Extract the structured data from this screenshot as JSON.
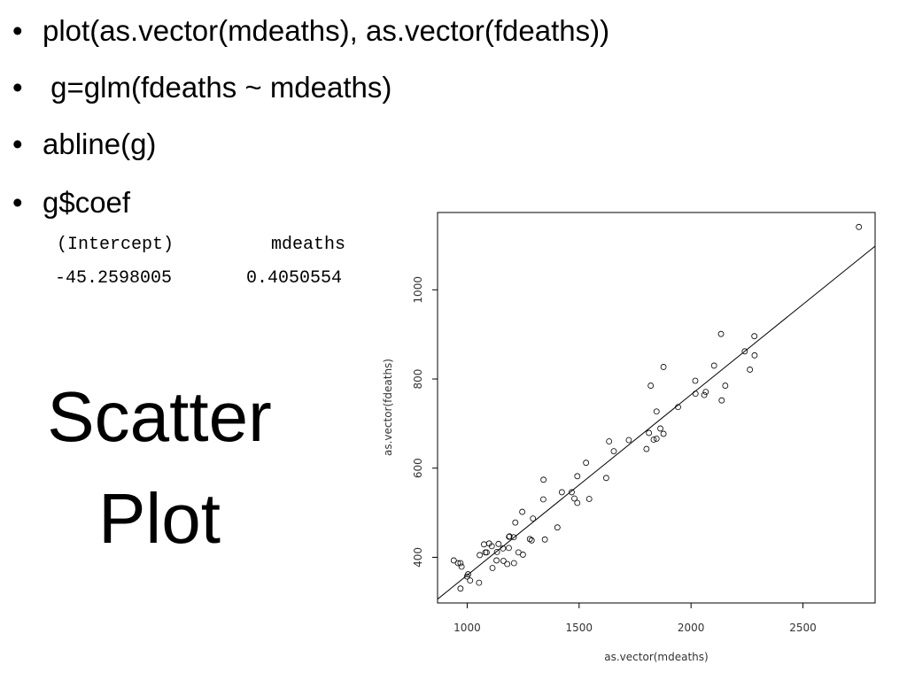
{
  "bullets": [
    "plot(as.vector(mdeaths), as.vector(fdeaths))",
    " g=glm(fdeaths ~ mdeaths)",
    "abline(g)",
    "g$coef"
  ],
  "coef": {
    "headers": [
      "(Intercept)",
      "mdeaths"
    ],
    "values": [
      -45.2598005,
      0.4050554
    ]
  },
  "slide_title": [
    "Scatter",
    "Plot"
  ],
  "chart_data": {
    "type": "scatter",
    "xlabel": "as.vector(mdeaths)",
    "ylabel": "as.vector(fdeaths)",
    "x": [
      2134,
      1863,
      1877,
      1877,
      1492,
      1249,
      1280,
      1131,
      1209,
      1492,
      1621,
      1846,
      2103,
      2137,
      2153,
      1833,
      1403,
      1288,
      1186,
      1133,
      1053,
      1347,
      1545,
      2066,
      2020,
      2750,
      2283,
      1479,
      1189,
      1160,
      1113,
      970,
      999,
      1208,
      1467,
      2059,
      2240,
      1634,
      1722,
      1801,
      1246,
      1162,
      1087,
      1013,
      959,
      1179,
      1229,
      1655,
      2019,
      2284,
      1942,
      1423,
      1340,
      1187,
      1098,
      1004,
      970,
      1140,
      1110,
      1812,
      2263,
      1820,
      1846,
      1531,
      1215,
      1075,
      1056,
      975,
      940,
      1081,
      1294,
      1341
    ],
    "values": [
      901,
      689,
      827,
      677,
      522,
      406,
      441,
      393,
      387,
      582,
      578,
      666,
      830,
      752,
      785,
      664,
      467,
      438,
      421,
      412,
      343,
      440,
      531,
      771,
      767,
      1141,
      896,
      532,
      447,
      420,
      376,
      330,
      357,
      445,
      546,
      764,
      862,
      660,
      663,
      643,
      502,
      392,
      411,
      348,
      387,
      385,
      411,
      638,
      796,
      853,
      737,
      546,
      530,
      446,
      431,
      362,
      387,
      430,
      425,
      679,
      821,
      785,
      727,
      612,
      478,
      429,
      405,
      379,
      393,
      411,
      487,
      574
    ],
    "color": "#000000",
    "xlim": [
      867.6,
      2822.4
    ],
    "ylim": [
      297.6,
      1173.4
    ],
    "xticks": [
      1000,
      1500,
      2000,
      2500
    ],
    "yticks": [
      400,
      600,
      800,
      1000
    ]
  }
}
